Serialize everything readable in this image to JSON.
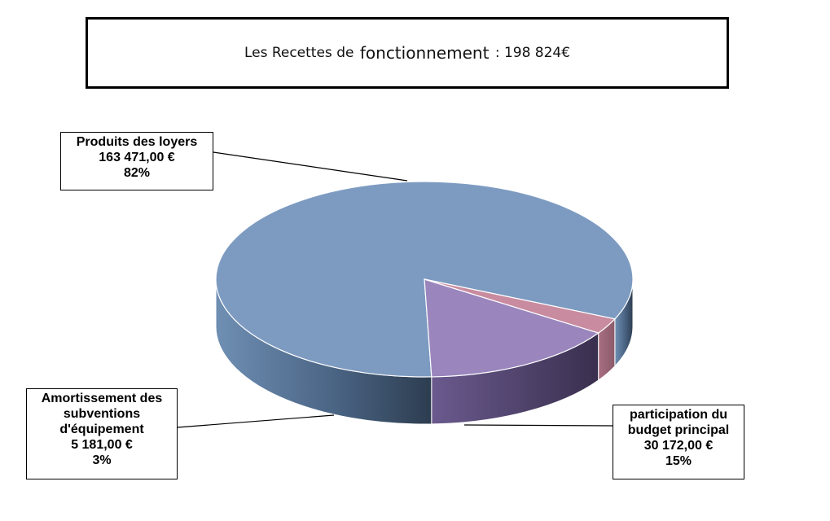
{
  "title": {
    "part1": "Les Recettes de",
    "part2": "fonctionnement",
    "part3": ": 198 824€"
  },
  "chart_data": {
    "type": "pie",
    "style": "3d",
    "title": "Les Recettes de fonctionnement : 198 824€",
    "slices": [
      {
        "name_lines": [
          "Produits des loyers"
        ],
        "value": 163471.0,
        "value_label": "163 471,00 €",
        "percent_label": "82%",
        "color": "#7d9bc1",
        "side_color": "#5f7d9f"
      },
      {
        "name_lines": [
          "participation du",
          "budget principal"
        ],
        "value": 30172.0,
        "value_label": "30 172,00 €",
        "percent_label": "15%",
        "color": "#9a86bd",
        "side_color": "#5b4c78"
      },
      {
        "name_lines": [
          "Amortissement des",
          "subventions",
          "d'équipement"
        ],
        "value": 5181.0,
        "value_label": "5 181,00 €",
        "percent_label": "3%",
        "color": "#c98ba0",
        "side_color": "#9c6375"
      }
    ]
  }
}
